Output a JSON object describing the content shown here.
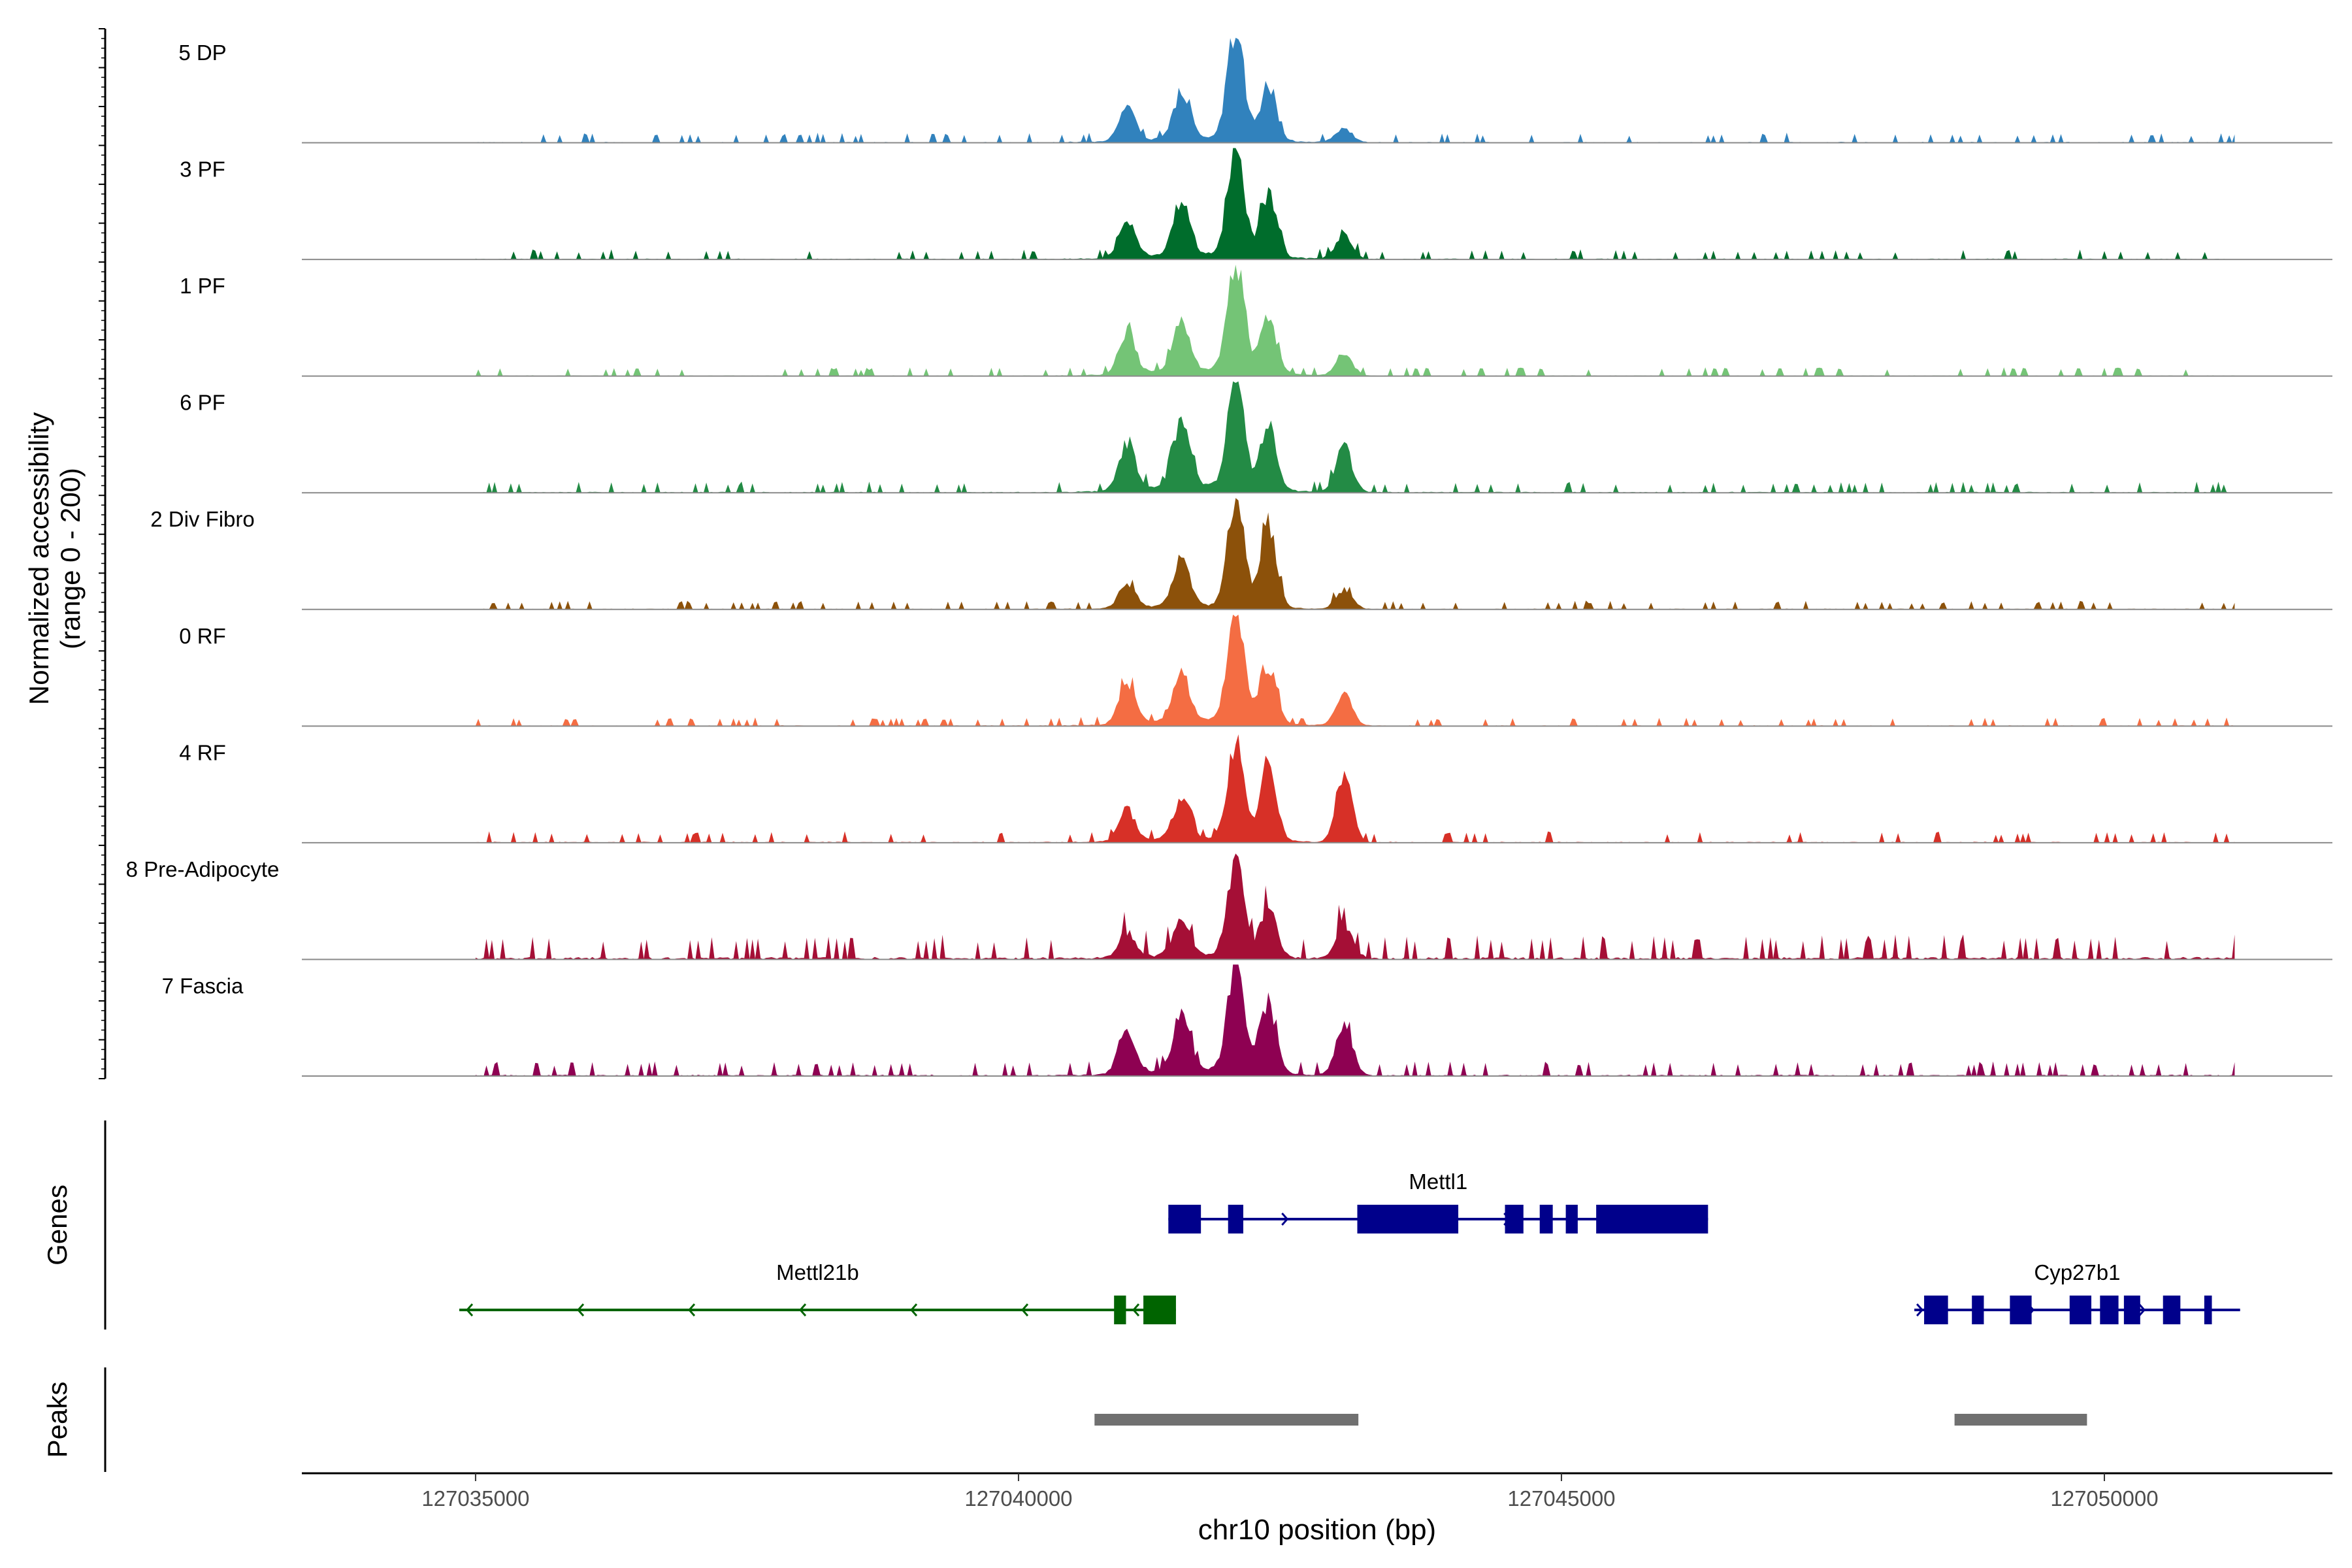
{
  "chart_data": {
    "type": "area",
    "title": "",
    "ylabel": "Normalized accessibility",
    "ylabel_range": "(range 0 - 200)",
    "ylim": [
      0,
      200
    ],
    "xlabel": "chr10 position (bp)",
    "xlim": [
      127033400,
      127052100
    ],
    "x_ticks": [
      127035000,
      127040000,
      127045000,
      127050000
    ],
    "x_tick_labels": [
      "127035000",
      "127040000",
      "127045000",
      "127050000"
    ],
    "track_start": 127035000,
    "track_end": 127051200,
    "peak_centers": [
      127041000,
      127041500,
      127042000,
      127042300,
      127043000
    ],
    "series": [
      {
        "name": "5 DP",
        "color": "#3182BD",
        "peak_heights": [
          60,
          80,
          200,
          95,
          25
        ],
        "noise": 0.08,
        "seed": 11
      },
      {
        "name": "3 PF",
        "color": "#006D2C",
        "peak_heights": [
          65,
          95,
          200,
          110,
          45
        ],
        "noise": 0.08,
        "seed": 23
      },
      {
        "name": "1 PF",
        "color": "#74C476",
        "peak_heights": [
          75,
          85,
          200,
          95,
          40
        ],
        "noise": 0.07,
        "seed": 37
      },
      {
        "name": "6 PF",
        "color": "#238B45",
        "peak_heights": [
          85,
          120,
          200,
          115,
          80
        ],
        "noise": 0.09,
        "seed": 41
      },
      {
        "name": "2 Div Fibro",
        "color": "#8C510A",
        "peak_heights": [
          45,
          90,
          200,
          150,
          35
        ],
        "noise": 0.07,
        "seed": 53
      },
      {
        "name": "0 RF",
        "color": "#F46D43",
        "peak_heights": [
          75,
          85,
          200,
          100,
          55
        ],
        "noise": 0.07,
        "seed": 61
      },
      {
        "name": "4 RF",
        "color": "#D73027",
        "peak_heights": [
          55,
          70,
          170,
          135,
          115
        ],
        "noise": 0.09,
        "seed": 71
      },
      {
        "name": "8 Pre-Adipocyte",
        "color": "#A50F36",
        "peak_heights": [
          45,
          65,
          175,
          90,
          60
        ],
        "noise": 0.2,
        "seed": 83
      },
      {
        "name": "7 Fascia",
        "color": "#8E0152",
        "peak_heights": [
          80,
          100,
          190,
          125,
          95
        ],
        "noise": 0.12,
        "seed": 97
      }
    ]
  },
  "genes_panel": {
    "label": "Genes",
    "genes": [
      {
        "name": "Mettl1",
        "color": "#00008B",
        "strand": "+",
        "start": 127041380,
        "end": 127046350,
        "row": 0,
        "exons": [
          [
            127041380,
            127041680
          ],
          [
            127041930,
            127042070
          ],
          [
            127043120,
            127044050
          ],
          [
            127044480,
            127044650
          ],
          [
            127044800,
            127044920
          ],
          [
            127045040,
            127045150
          ],
          [
            127045320,
            127046350
          ]
        ]
      },
      {
        "name": "Mettl21b",
        "color": "#006400",
        "strand": "-",
        "start": 127034850,
        "end": 127041450,
        "row": 1,
        "exons": [
          [
            127040880,
            127040990
          ],
          [
            127041150,
            127041450
          ]
        ]
      },
      {
        "name": "Cyp27b1",
        "color": "#00008B",
        "strand": "+",
        "start": 127048250,
        "end": 127051250,
        "row": 1,
        "exons": [
          [
            127048340,
            127048560
          ],
          [
            127048780,
            127048890
          ],
          [
            127049130,
            127049330
          ],
          [
            127049680,
            127049880
          ],
          [
            127049960,
            127050130
          ],
          [
            127050180,
            127050330
          ],
          [
            127050540,
            127050700
          ],
          [
            127050920,
            127050990
          ]
        ]
      }
    ]
  },
  "peaks_panel": {
    "label": "Peaks",
    "color": "#707070",
    "peaks": [
      [
        127040700,
        127043130
      ],
      [
        127048620,
        127049840
      ]
    ]
  }
}
